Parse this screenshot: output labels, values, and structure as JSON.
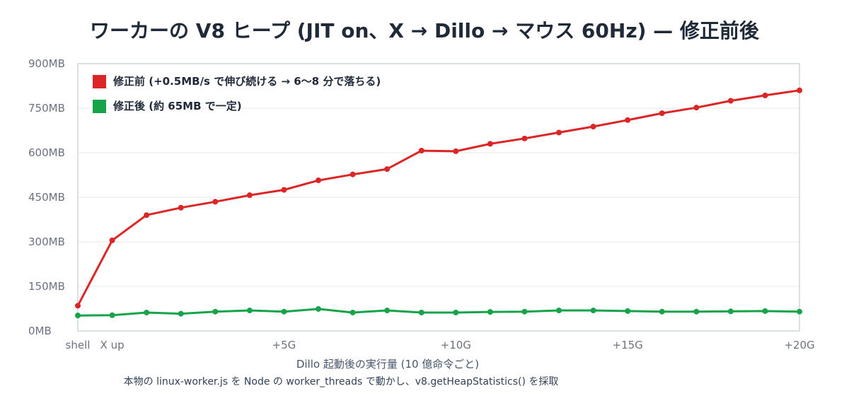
{
  "chart_data": {
    "type": "line",
    "title": "ワーカーの V8 ヒープ (JIT on、X → Dillo → マウス 60Hz) — 修正前後",
    "xlabel": "Dillo 起動後の実行量 (10 億命令ごと)",
    "note": "本物の linux-worker.js を Node の worker_threads で動かし、v8.getHeapStatistics() を採取",
    "ylim": [
      0,
      900
    ],
    "xlim": [
      0,
      21
    ],
    "y_ticks": [
      {
        "value": 0,
        "label": "0MB"
      },
      {
        "value": 150,
        "label": "150MB"
      },
      {
        "value": 300,
        "label": "300MB"
      },
      {
        "value": 450,
        "label": "450MB"
      },
      {
        "value": 600,
        "label": "600MB"
      },
      {
        "value": 750,
        "label": "750MB"
      },
      {
        "value": 900,
        "label": "900MB"
      }
    ],
    "x_ticks": [
      {
        "value": 0,
        "label": "shell"
      },
      {
        "value": 1.0,
        "label": "X up"
      },
      {
        "value": 6,
        "label": "+5G"
      },
      {
        "value": 11,
        "label": "+10G"
      },
      {
        "value": 16,
        "label": "+15G"
      },
      {
        "value": 21,
        "label": "+20G"
      }
    ],
    "grid": true,
    "legend_position": "top-left",
    "x": [
      0,
      1,
      2,
      3,
      4,
      5,
      6,
      7,
      8,
      9,
      10,
      11,
      12,
      13,
      14,
      15,
      16,
      17,
      18,
      19,
      20,
      21
    ],
    "series": [
      {
        "name": "修正前 (+0.5MB/s で伸び続ける → 6〜8 分で落ちる)",
        "color": "#dc2626",
        "values": [
          85,
          305,
          390,
          415,
          435,
          457,
          475,
          507,
          527,
          545,
          607,
          605,
          630,
          648,
          668,
          688,
          710,
          733,
          752,
          775,
          793,
          810
        ]
      },
      {
        "name": "修正後 (約 65MB で一定)",
        "color": "#16a34a",
        "values": [
          52,
          53,
          62,
          58,
          65,
          69,
          65,
          74,
          62,
          69,
          62,
          62,
          64,
          65,
          69,
          69,
          67,
          65,
          65,
          66,
          67,
          65
        ]
      }
    ]
  }
}
